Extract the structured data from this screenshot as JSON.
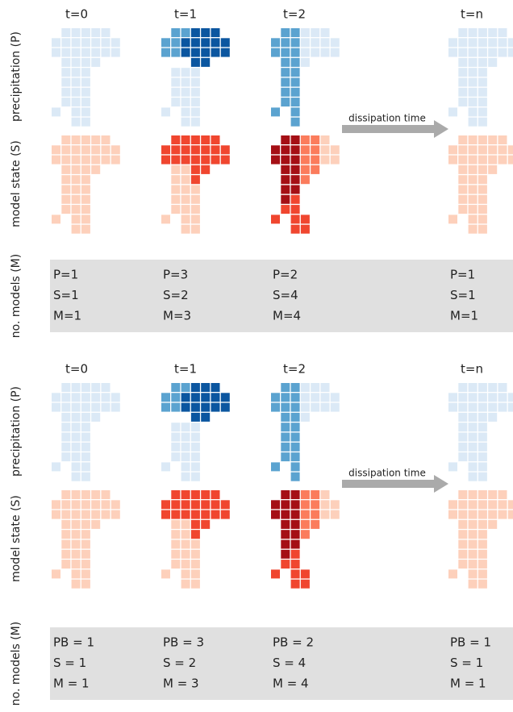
{
  "panels": [
    {
      "columns": [
        "t=0",
        "t=1",
        "t=2",
        "t=n"
      ],
      "row_labels": [
        "precipitation (P)",
        "model state (S)",
        "no. models (M)"
      ],
      "arrow_label": "dissipation time",
      "counts": [
        [
          "P=1",
          "S=1",
          "M=1"
        ],
        [
          "P=3",
          "S=2",
          "M=3"
        ],
        [
          "P=2",
          "S=4",
          "M=4"
        ],
        [
          "P=1",
          "S=1",
          "M=1"
        ]
      ]
    },
    {
      "columns": [
        "t=0",
        "t=1",
        "t=2",
        "t=n"
      ],
      "row_labels": [
        "precipitation (P)",
        "model state (S)",
        "no. models (M)"
      ],
      "arrow_label": "dissipation time",
      "counts": [
        [
          "PB = 1",
          "S = 1",
          "M = 1"
        ],
        [
          "PB = 3",
          "S = 2",
          "M = 3"
        ],
        [
          "PB = 2",
          "S = 4",
          "M = 4"
        ],
        [
          "PB = 1",
          "S = 1",
          "M = 1"
        ]
      ]
    }
  ]
}
